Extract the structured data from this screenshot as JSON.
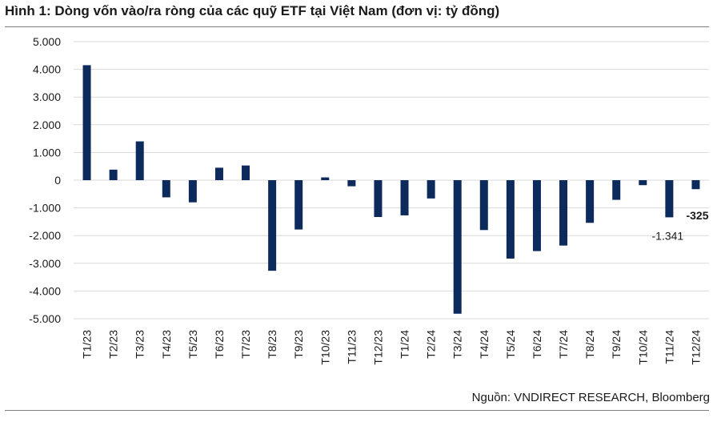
{
  "title": "Hình 1: Dòng vốn vào/ra ròng của các quỹ ETF tại Việt Nam (đơn vị: tỷ đồng)",
  "source": "Nguồn: VNDIRECT RESEARCH, Bloomberg",
  "colors": {
    "bar": "#0d2a5c",
    "grid": "#d9d9d9"
  },
  "chart_data": {
    "type": "bar",
    "title": "Hình 1: Dòng vốn vào/ra ròng của các quỹ ETF tại Việt Nam (đơn vị: tỷ đồng)",
    "xlabel": "",
    "ylabel": "",
    "ylim": [
      -5000,
      5000
    ],
    "y_ticks": [
      5000,
      4000,
      3000,
      2000,
      1000,
      0,
      -1000,
      -2000,
      -3000,
      -4000,
      -5000
    ],
    "y_tick_labels": [
      "5.000",
      "4.000",
      "3.000",
      "2.000",
      "1.000",
      "0",
      "-1.000",
      "-2.000",
      "-3.000",
      "-4.000",
      "-5.000"
    ],
    "grid": "horizontal",
    "legend": "none",
    "categories": [
      "T1/23",
      "T2/23",
      "T3/23",
      "T4/23",
      "T5/23",
      "T6/23",
      "T7/23",
      "T8/23",
      "T9/23",
      "T10/23",
      "T11/23",
      "T12/23",
      "T1/24",
      "T2/24",
      "T3/24",
      "T4/24",
      "T5/24",
      "T6/24",
      "T7/24",
      "T8/24",
      "T9/24",
      "T10/24",
      "T11/24",
      "T12/24"
    ],
    "values": [
      4150,
      380,
      1400,
      -620,
      -800,
      450,
      530,
      -3270,
      -1780,
      100,
      -220,
      -1330,
      -1270,
      -660,
      -4820,
      -1800,
      -2830,
      -2560,
      -2360,
      -1540,
      -710,
      -180,
      -1341,
      -325
    ],
    "data_labels": [
      {
        "index": 22,
        "text": "-1.341",
        "bold": false
      },
      {
        "index": 23,
        "text": "-325",
        "bold": true
      }
    ]
  }
}
